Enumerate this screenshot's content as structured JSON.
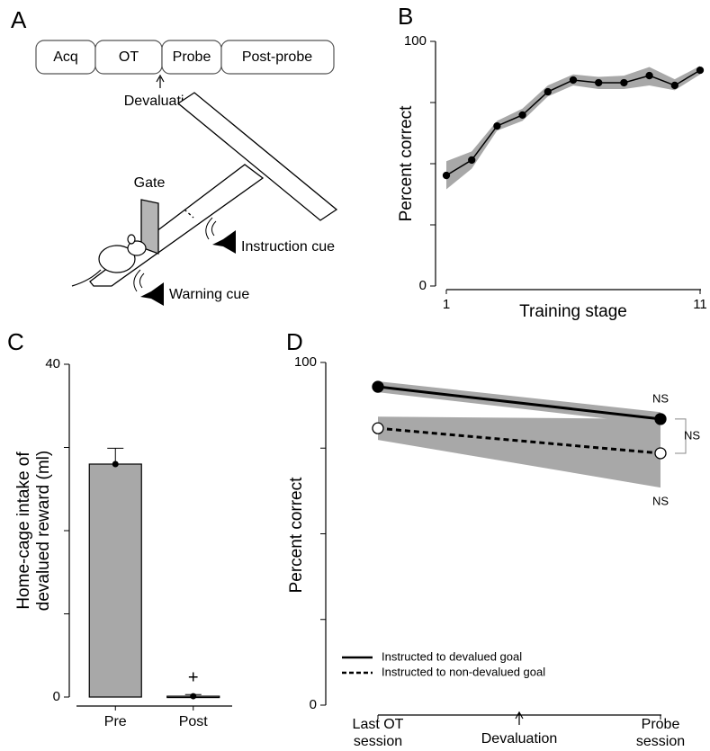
{
  "diagram_a": {
    "panel_label": "A",
    "timeline": [
      "Acq",
      "OT",
      "Probe",
      "Post-probe"
    ],
    "event": "Devaluation",
    "labels": {
      "gate": "Gate",
      "instruction": "Instruction cue",
      "warning": "Warning cue"
    }
  },
  "chart_data": [
    {
      "type": "line",
      "panel_label": "B",
      "xlabel": "Training stage",
      "ylabel": "Percent correct",
      "x": [
        1,
        2,
        3,
        4,
        5,
        6,
        7,
        8,
        9,
        10,
        11
      ],
      "xlim": [
        1,
        11
      ],
      "xticks": [
        1,
        11
      ],
      "ylim": [
        0,
        100
      ],
      "yticks": [
        0,
        100
      ],
      "yminor": [
        25,
        50,
        75
      ],
      "series": [
        {
          "color": "#000000",
          "band_color": "#a8a8a8",
          "values": [
            45.2,
            51.5,
            65.4,
            69.9,
            79.4,
            84.2,
            83.1,
            83.1,
            86.0,
            82.0,
            88.2
          ],
          "lower": [
            39.5,
            48.0,
            63.5,
            67.5,
            77.5,
            82.0,
            80.5,
            80.5,
            82.0,
            80.0,
            86.5
          ],
          "upper": [
            51.0,
            55.0,
            67.5,
            72.5,
            82.0,
            86.5,
            85.5,
            86.0,
            89.5,
            84.5,
            90.0
          ]
        }
      ]
    },
    {
      "type": "bar",
      "panel_label": "C",
      "ylabel": "Home-cage intake of devalued reward (ml)",
      "categories": [
        "Pre",
        "Post"
      ],
      "values": [
        28.0,
        0.1
      ],
      "errors": [
        1.9,
        0.2
      ],
      "color": "#a8a8a8",
      "ylim": [
        0,
        40
      ],
      "yticks": [
        0,
        40
      ],
      "yminor": [
        10,
        20,
        30
      ],
      "annotations": [
        {
          "text": "+",
          "x": "Post"
        }
      ]
    },
    {
      "type": "line",
      "panel_label": "D",
      "ylabel": "Percent correct",
      "categories": [
        "Last OT session",
        "Probe session"
      ],
      "event": "Devaluation",
      "ylim": [
        0,
        100
      ],
      "yticks": [
        0,
        100
      ],
      "yminor": [
        25,
        50,
        75
      ],
      "legend": "lower left",
      "series": [
        {
          "name": "Instructed to devalued goal",
          "color": "#000000",
          "band_color": "#a8a8a8",
          "linestyle": "solid",
          "marker": "filled",
          "values": [
            92.9,
            83.5
          ],
          "lower": [
            91.3,
            81.8
          ],
          "upper": [
            94.5,
            85.5
          ]
        },
        {
          "name": "Instructed to non-devalued goal",
          "color": "#000000",
          "band_color": "#a8a8a8",
          "linestyle": "dashed",
          "marker": "open",
          "values": [
            80.8,
            73.5
          ],
          "lower": [
            77.4,
            63.5
          ],
          "upper": [
            84.2,
            83.5
          ]
        }
      ],
      "annotations": [
        "NS",
        "NS",
        "NS"
      ]
    }
  ]
}
